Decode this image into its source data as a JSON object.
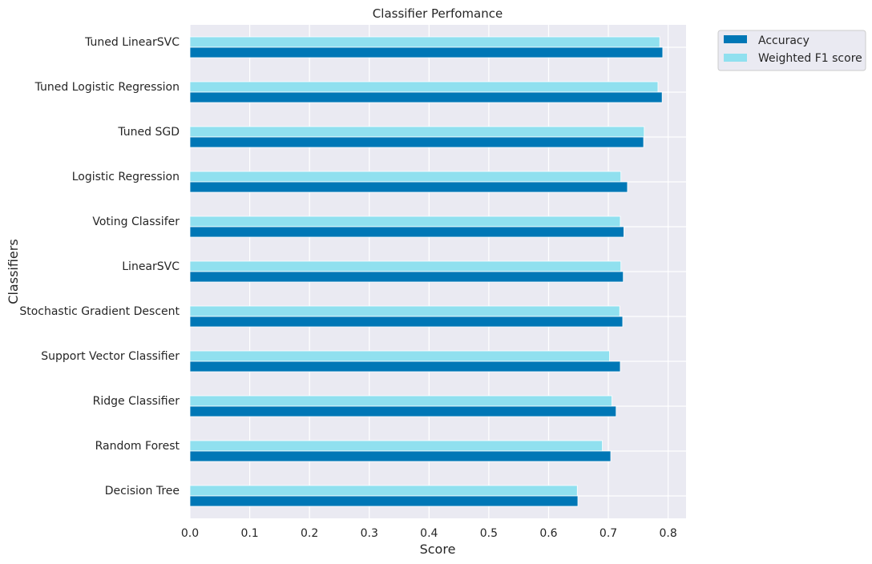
{
  "chart_data": {
    "type": "bar",
    "orientation": "horizontal",
    "title": "Classifier Perfomance",
    "xlabel": "Score",
    "ylabel": "Classifiers",
    "xlim": [
      0,
      0.83
    ],
    "xticks": [
      0.0,
      0.1,
      0.2,
      0.3,
      0.4,
      0.5,
      0.6,
      0.7,
      0.8
    ],
    "xtick_labels": [
      "0.0",
      "0.1",
      "0.2",
      "0.3",
      "0.4",
      "0.5",
      "0.6",
      "0.7",
      "0.8"
    ],
    "grid": true,
    "legend_position": "outside top-right",
    "categories": [
      "Tuned LinearSVC",
      "Tuned Logistic Regression",
      "Tuned SGD",
      "Logistic Regression",
      "Voting Classifer",
      "LinearSVC",
      "Stochastic Gradient Descent",
      "Support Vector Classifier",
      "Ridge Classifier",
      "Random Forest",
      "Decision Tree"
    ],
    "series": [
      {
        "name": "Accuracy",
        "color": "#0077b6",
        "values": [
          0.791,
          0.79,
          0.759,
          0.732,
          0.726,
          0.725,
          0.724,
          0.72,
          0.713,
          0.704,
          0.649
        ]
      },
      {
        "name": "Weighted F1 score",
        "color": "#90e0ef",
        "values": [
          0.786,
          0.783,
          0.76,
          0.721,
          0.72,
          0.721,
          0.719,
          0.702,
          0.706,
          0.69,
          0.648
        ]
      }
    ]
  },
  "colors": {
    "plot_background": "#eaeaf2",
    "grid": "#ffffff",
    "text": "#262626"
  }
}
